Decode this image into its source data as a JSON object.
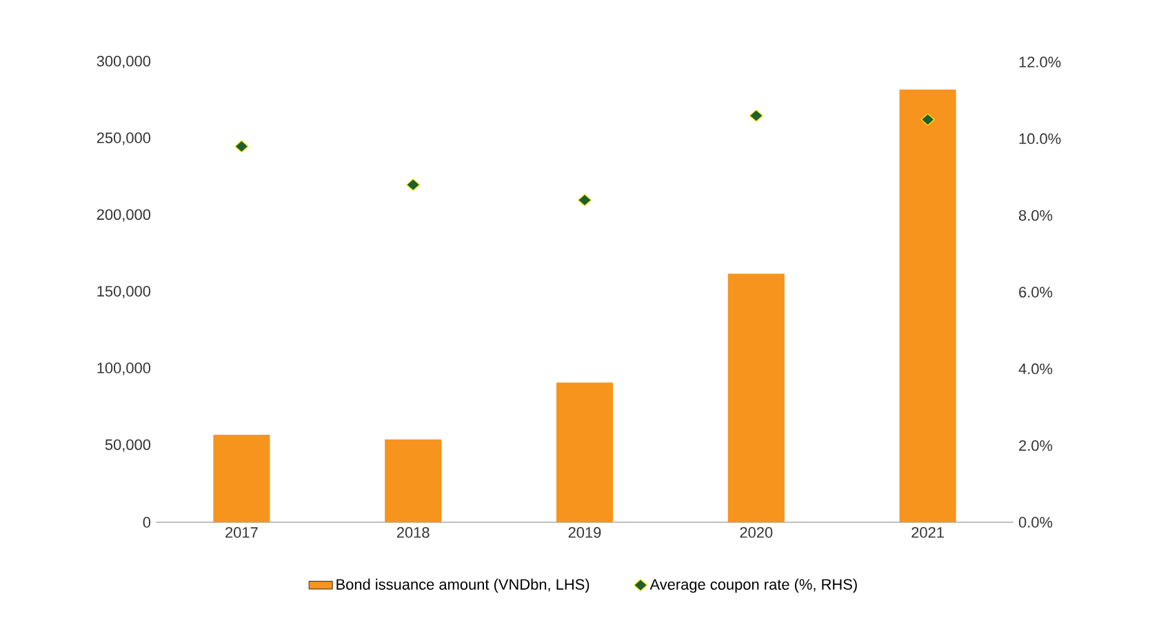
{
  "chart_data": {
    "type": "bar",
    "categories": [
      "2017",
      "2018",
      "2019",
      "2020",
      "2021"
    ],
    "series": [
      {
        "name": "Bond issuance amount (VNDbn, LHS)",
        "color": "#f7941d",
        "values": [
          57000,
          54000,
          91000,
          162000,
          282000
        ]
      },
      {
        "name": "Average coupon rate (%, RHS)",
        "type": "scatter",
        "axis": "y2",
        "color": "#1e5e32",
        "values": [
          9.8,
          8.8,
          8.4,
          10.6,
          10.5
        ]
      }
    ],
    "ylim": [
      0,
      300000
    ],
    "yticks": [
      {
        "value": 0,
        "label": "0"
      },
      {
        "value": 50000,
        "label": "50,000"
      },
      {
        "value": 100000,
        "label": "100,000"
      },
      {
        "value": 150000,
        "label": "150,000"
      },
      {
        "value": 200000,
        "label": "200,000"
      },
      {
        "value": 250000,
        "label": "250,000"
      },
      {
        "value": 300000,
        "label": "300,000"
      }
    ],
    "y2lim": [
      0,
      12
    ],
    "y2ticks": [
      {
        "value": 0,
        "label": "0.0%"
      },
      {
        "value": 2,
        "label": "2.0%"
      },
      {
        "value": 4,
        "label": "4.0%"
      },
      {
        "value": 6,
        "label": "6.0%"
      },
      {
        "value": 8,
        "label": "8.0%"
      },
      {
        "value": 10,
        "label": "10.0%"
      },
      {
        "value": 12,
        "label": "12.0%"
      }
    ],
    "marker": "diamond",
    "legend": "bottom",
    "grid": false
  }
}
